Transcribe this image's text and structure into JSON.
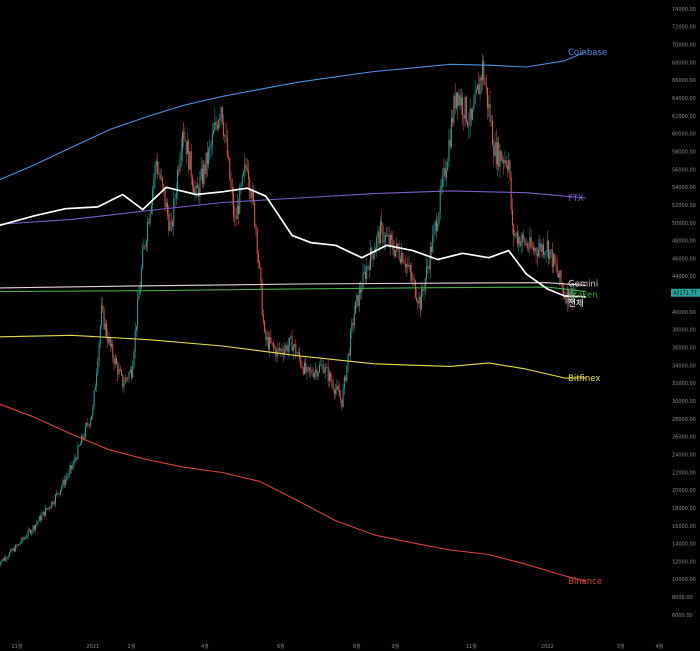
{
  "chart_data": {
    "type": "line",
    "title": "",
    "xlabel": "",
    "ylabel": "",
    "ylim": [
      5000,
      75000
    ],
    "y_scale": "linear",
    "grid": false,
    "background": "#000000",
    "y_ticks": [
      6000,
      8000,
      10000,
      12000,
      14000,
      16000,
      18000,
      20000,
      22000,
      24000,
      26000,
      28000,
      30000,
      32000,
      34000,
      36000,
      38000,
      40000,
      42000,
      44000,
      46000,
      48000,
      50000,
      52000,
      54000,
      56000,
      58000,
      60000,
      62000,
      64000,
      66000,
      68000,
      70000,
      72000,
      74000
    ],
    "y_tick_labels": [
      "6000.00",
      "8000.00",
      "10000.00",
      "12000.00",
      "14000.00",
      "16000.00",
      "18000.00",
      "20000.00",
      "22000.00",
      "24000.00",
      "26000.00",
      "28000.00",
      "30000.00",
      "32000.00",
      "34000.00",
      "36000.00",
      "38000.00",
      "40000.00",
      "42000.00",
      "44000.00",
      "46000.00",
      "48000.00",
      "50000.00",
      "52000.00",
      "54000.00",
      "56000.00",
      "58000.00",
      "60000.00",
      "62000.00",
      "64000.00",
      "66000.00",
      "68000.00",
      "70000.00",
      "72000.00",
      "74000.00"
    ],
    "x_ticks": [
      "2020-11-01",
      "2021-01-01",
      "2021-02-01",
      "2021-04-01",
      "2021-06-01",
      "2021-08-01",
      "2021-09-01",
      "2021-11-01",
      "2022-01-01",
      "2022-03-01",
      "2022-04-01"
    ],
    "x_tick_labels": [
      "11월",
      "2021",
      "2월",
      "4월",
      "6월",
      "8월",
      "9월",
      "11월",
      "2022",
      "3월",
      "4월"
    ],
    "x_range": [
      "2020-10-12",
      "2022-04-20"
    ],
    "last_price_label": "42171.77",
    "last_price": 42171.77,
    "candles": {
      "up_color": "#26a69a",
      "down_color": "#ef5350",
      "x": [
        "2020-10-15",
        "2020-11-01",
        "2020-11-15",
        "2020-12-01",
        "2020-12-15",
        "2021-01-01",
        "2021-01-08",
        "2021-01-15",
        "2021-01-25",
        "2021-02-01",
        "2021-02-10",
        "2021-02-21",
        "2021-03-05",
        "2021-03-14",
        "2021-03-25",
        "2021-04-05",
        "2021-04-14",
        "2021-04-25",
        "2021-05-05",
        "2021-05-12",
        "2021-05-19",
        "2021-05-29",
        "2021-06-10",
        "2021-06-22",
        "2021-07-05",
        "2021-07-20",
        "2021-07-30",
        "2021-08-10",
        "2021-08-20",
        "2021-09-01",
        "2021-09-07",
        "2021-09-21",
        "2021-10-01",
        "2021-10-10",
        "2021-10-20",
        "2021-11-01",
        "2021-11-10",
        "2021-11-20",
        "2021-12-01",
        "2021-12-04",
        "2021-12-20",
        "2022-01-01",
        "2022-01-15",
        "2022-01-24"
      ],
      "close": [
        11500,
        13700,
        16000,
        19000,
        22500,
        29000,
        40000,
        36000,
        32000,
        33500,
        46000,
        57000,
        49000,
        61000,
        53000,
        58000,
        63500,
        50000,
        57000,
        49500,
        37000,
        35500,
        36500,
        33000,
        34000,
        30000,
        40000,
        45500,
        49000,
        47000,
        46500,
        41000,
        48000,
        55000,
        65000,
        61000,
        67500,
        58000,
        57000,
        49000,
        47000,
        47500,
        42000,
        42171.77
      ]
    },
    "series": [
      {
        "name": "Coinbase",
        "color": "#4a8fe0",
        "x": [
          "2020-10-12",
          "2020-11-15",
          "2020-12-15",
          "2021-01-15",
          "2021-02-15",
          "2021-03-15",
          "2021-04-15",
          "2021-05-15",
          "2021-06-15",
          "2021-07-15",
          "2021-08-15",
          "2021-09-15",
          "2021-10-15",
          "2021-11-15",
          "2021-12-15",
          "2022-01-15",
          "2022-02-01"
        ],
        "values": [
          54500,
          56500,
          58500,
          60500,
          62000,
          63200,
          64200,
          65000,
          65800,
          66400,
          67000,
          67400,
          67800,
          67700,
          67500,
          68200,
          69200
        ]
      },
      {
        "name": "FTX",
        "color": "#7b5cc8",
        "x": [
          "2020-10-12",
          "2020-12-15",
          "2021-02-15",
          "2021-04-15",
          "2021-06-15",
          "2021-08-15",
          "2021-10-15",
          "2021-12-15",
          "2022-02-01"
        ],
        "values": [
          49800,
          50400,
          51400,
          52300,
          52800,
          53300,
          53600,
          53400,
          52800
        ]
      },
      {
        "name": "Gemini",
        "color": "#e8d2d8",
        "x": [
          "2020-10-12",
          "2021-02-15",
          "2021-06-15",
          "2021-10-15",
          "2022-01-01",
          "2022-02-01"
        ],
        "values": [
          42700,
          42950,
          43150,
          43250,
          43300,
          43000
        ]
      },
      {
        "name": "Kraken",
        "color": "#46a846",
        "x": [
          "2020-10-12",
          "2021-02-15",
          "2021-06-15",
          "2021-10-15",
          "2022-01-01",
          "2022-02-01"
        ],
        "values": [
          42300,
          42400,
          42600,
          42750,
          42800,
          42300
        ]
      },
      {
        "name": "전체",
        "color": "#ffffff",
        "x": [
          "2020-10-12",
          "2020-11-15",
          "2020-12-10",
          "2021-01-05",
          "2021-01-25",
          "2021-02-10",
          "2021-03-01",
          "2021-03-25",
          "2021-04-15",
          "2021-05-05",
          "2021-05-20",
          "2021-06-10",
          "2021-06-25",
          "2021-07-15",
          "2021-08-05",
          "2021-08-25",
          "2021-09-15",
          "2021-10-05",
          "2021-10-25",
          "2021-11-15",
          "2021-12-01",
          "2021-12-15",
          "2022-01-01",
          "2022-01-15",
          "2022-02-01"
        ],
        "values": [
          49500,
          50800,
          51600,
          51800,
          53200,
          51500,
          54000,
          53200,
          53500,
          53900,
          53000,
          48600,
          47800,
          47500,
          46100,
          47500,
          46900,
          45900,
          46600,
          46100,
          46900,
          44300,
          42600,
          41800,
          41700
        ]
      },
      {
        "name": "Bitfinex",
        "color": "#e6dd4a",
        "x": [
          "2020-10-12",
          "2020-12-15",
          "2021-02-15",
          "2021-04-15",
          "2021-06-15",
          "2021-08-15",
          "2021-10-15",
          "2021-11-15",
          "2021-12-15",
          "2022-01-15",
          "2022-02-01"
        ],
        "values": [
          37200,
          37400,
          36900,
          36200,
          35100,
          34200,
          33900,
          34300,
          33600,
          32600,
          32600
        ]
      },
      {
        "name": "Binance",
        "color": "#d8433b",
        "x": [
          "2020-10-12",
          "2020-11-15",
          "2020-12-15",
          "2021-01-15",
          "2021-02-15",
          "2021-03-15",
          "2021-04-15",
          "2021-05-15",
          "2021-06-15",
          "2021-07-15",
          "2021-08-15",
          "2021-09-15",
          "2021-10-15",
          "2021-11-15",
          "2021-12-15",
          "2022-01-15",
          "2022-02-01"
        ],
        "values": [
          30000,
          28200,
          26300,
          24500,
          23400,
          22600,
          22000,
          21000,
          18800,
          16600,
          15000,
          14100,
          13300,
          12800,
          11700,
          10400,
          9800
        ]
      }
    ]
  }
}
